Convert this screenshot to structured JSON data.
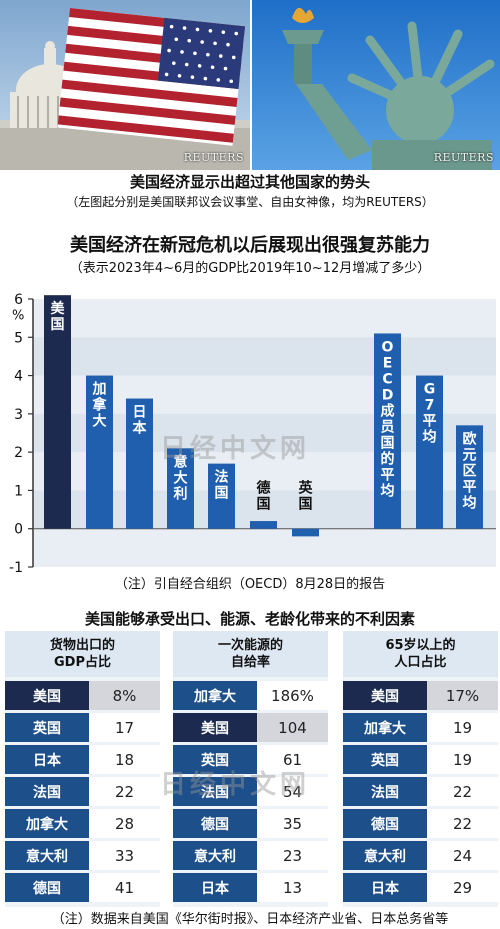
{
  "photos": {
    "left_credit": "REUTERS",
    "right_credit": "REUTERS"
  },
  "caption": {
    "title": "美国经济显示出超过其他国家的势头",
    "subtitle": "（左图起分别是美国联邦议会议事堂、自由女神像，均为REUTERS）"
  },
  "chart_data": {
    "type": "bar",
    "title": "美国经济在新冠危机以后展现出很强复苏能力",
    "subtitle": "（表示2023年4~6月的GDP比2019年10~12月增减了多少）",
    "ylabel": "%",
    "ylim": [
      -1,
      6
    ],
    "yticks": [
      6,
      5,
      4,
      3,
      2,
      1,
      0,
      -1
    ],
    "categories": [
      "美国",
      "加拿大",
      "日本",
      "意大利",
      "法国",
      "德国",
      "英国",
      "OECD成员国的平均",
      "G7平均",
      "欧元区平均"
    ],
    "values": [
      6.1,
      4.0,
      3.4,
      2.1,
      1.7,
      0.2,
      -0.2,
      5.1,
      4.0,
      2.7
    ],
    "highlight": "美国",
    "colors": {
      "highlight": "#1b2a4e",
      "bar": "#1f5fae",
      "plot_bg": "#e9eef4",
      "axis": "#333333"
    },
    "note": "（注）引自经合组织（OECD）8月28日的报告"
  },
  "factors": {
    "title": "美国能够承受出口、能源、老龄化带来的不利因素",
    "panels": [
      {
        "header": "货物出口的\nGDP占比",
        "rows": [
          {
            "label": "美国",
            "value": "8%",
            "highlight": true
          },
          {
            "label": "英国",
            "value": "17"
          },
          {
            "label": "日本",
            "value": "18"
          },
          {
            "label": "法国",
            "value": "22"
          },
          {
            "label": "加拿大",
            "value": "28"
          },
          {
            "label": "意大利",
            "value": "33"
          },
          {
            "label": "德国",
            "value": "41"
          }
        ]
      },
      {
        "header": "一次能源的\n自给率",
        "rows": [
          {
            "label": "加拿大",
            "value": "186%"
          },
          {
            "label": "美国",
            "value": "104",
            "highlight": true
          },
          {
            "label": "英国",
            "value": "61"
          },
          {
            "label": "法国",
            "value": "54"
          },
          {
            "label": "德国",
            "value": "35"
          },
          {
            "label": "意大利",
            "value": "23"
          },
          {
            "label": "日本",
            "value": "13"
          }
        ]
      },
      {
        "header": "65岁以上的\n人口占比",
        "rows": [
          {
            "label": "美国",
            "value": "17%",
            "highlight": true
          },
          {
            "label": "加拿大",
            "value": "19"
          },
          {
            "label": "英国",
            "value": "19"
          },
          {
            "label": "法国",
            "value": "22"
          },
          {
            "label": "德国",
            "value": "22"
          },
          {
            "label": "意大利",
            "value": "24"
          },
          {
            "label": "日本",
            "value": "29"
          }
        ]
      }
    ],
    "footnote": "（注）数据来自美国《华尔街时报》、日本经济产业省、日本总务省等"
  },
  "watermarks": [
    "日经中文网",
    "日经中文网"
  ]
}
